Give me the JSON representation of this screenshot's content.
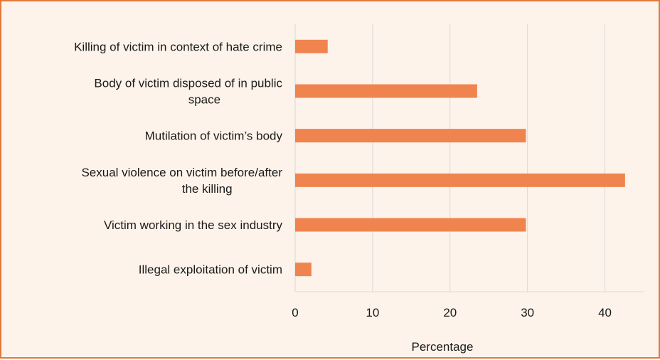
{
  "chart_data": {
    "type": "bar",
    "orientation": "horizontal",
    "categories": [
      [
        "Killing of victim in context of hate crime"
      ],
      [
        "Body of victim disposed of in public",
        "space"
      ],
      [
        "Mutilation of victim’s body"
      ],
      [
        "Sexual violence on victim before/after",
        "the killing"
      ],
      [
        "Victim working in the sex industry"
      ],
      [
        "Illegal exploitation of victim"
      ]
    ],
    "values": [
      4.2,
      23.5,
      29.8,
      42.6,
      29.8,
      2.1
    ],
    "xlabel": "Percentage",
    "xlim": [
      0,
      45
    ],
    "xticks": [
      0,
      10,
      20,
      30,
      40
    ],
    "grid": true,
    "bar_color": "#F0844F",
    "grid_color": "#D9D9D9",
    "background_color": "#FDF3EA",
    "border_color": "#E07A3C"
  }
}
